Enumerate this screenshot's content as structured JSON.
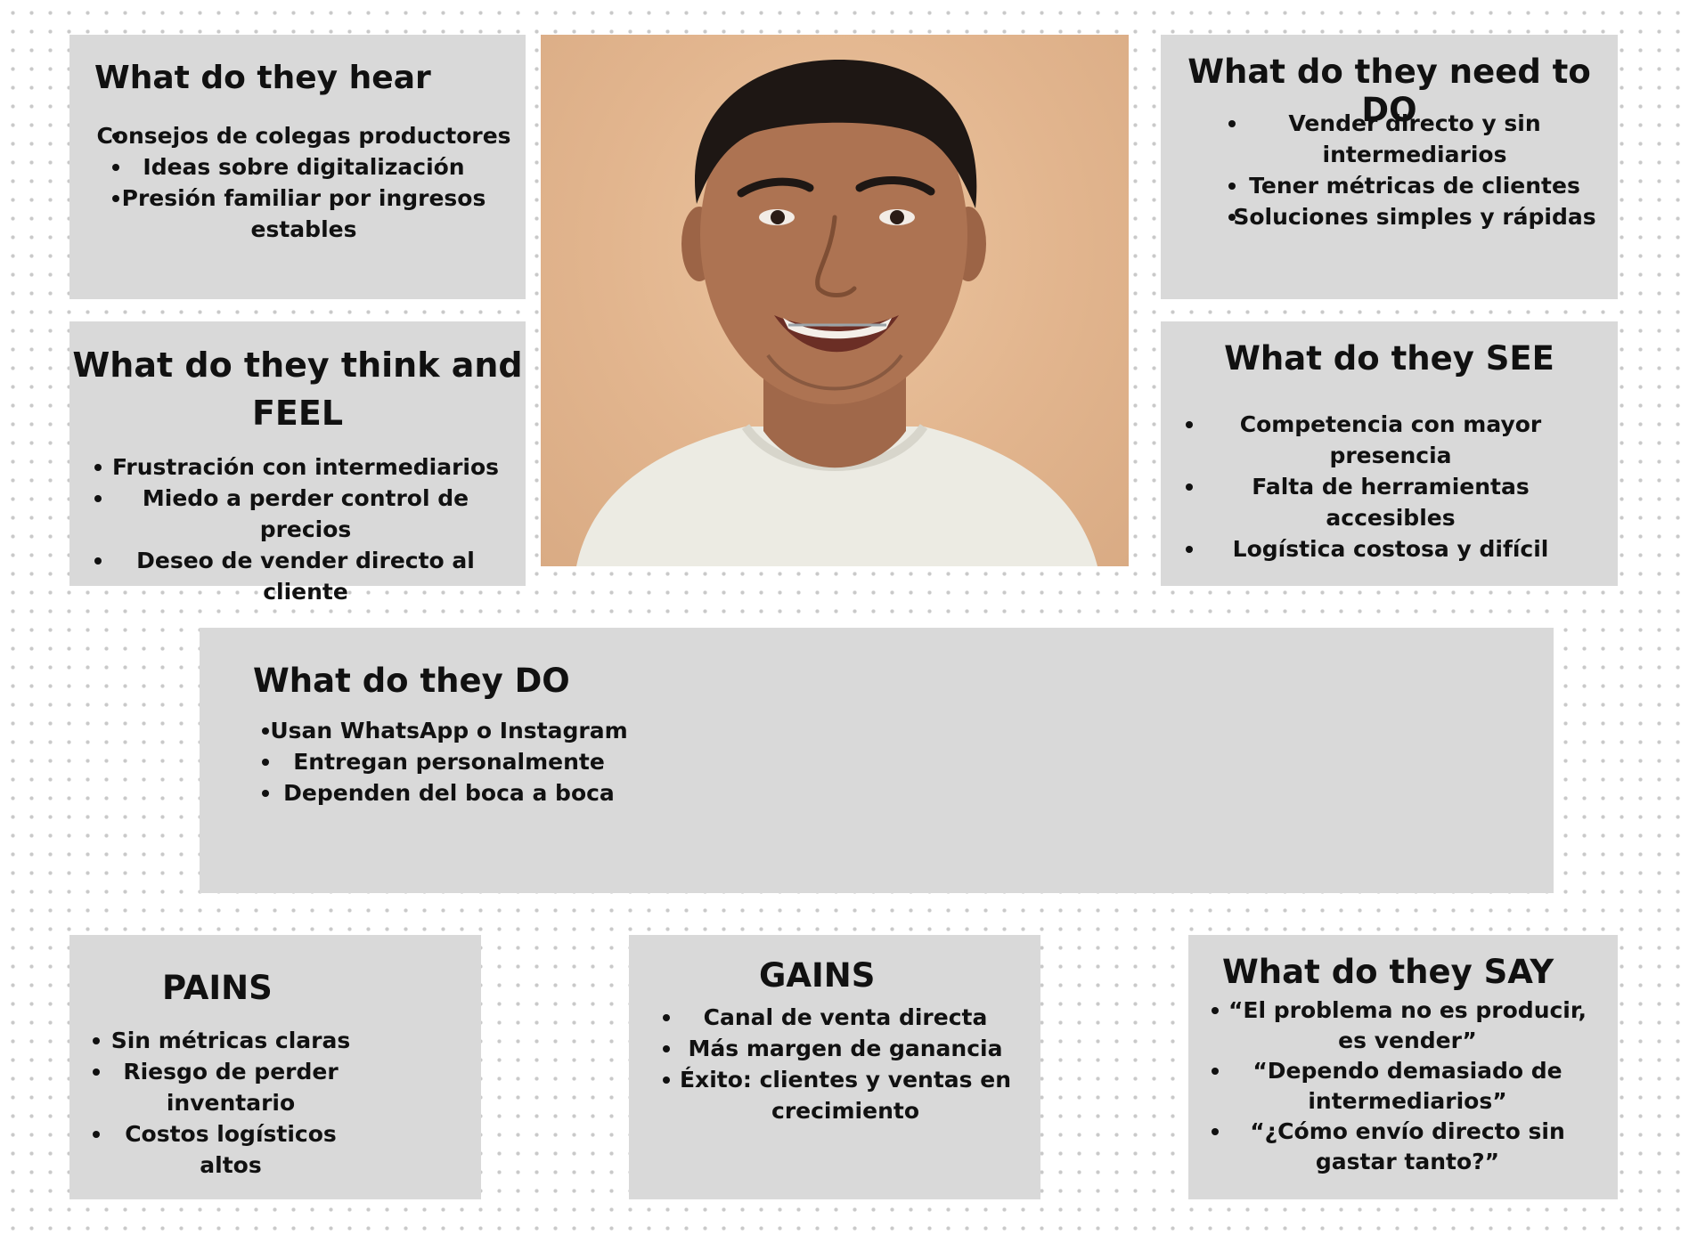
{
  "hear": {
    "title": "What do  they hear",
    "items": [
      "Consejos de colegas productores",
      "Ideas sobre digitalización",
      "Presión familiar por ingresos estables"
    ]
  },
  "think_feel": {
    "title": "What do they think and FEEL",
    "items": [
      "Frustración con intermediarios",
      "Miedo a perder control de precios",
      "Deseo de vender directo al cliente"
    ]
  },
  "need_to_do": {
    "title": "What do they need to DO",
    "items": [
      "Vender directo y sin intermediarios",
      "Tener métricas de clientes",
      "Soluciones simples y rápidas"
    ]
  },
  "see": {
    "title": "What do  they SEE",
    "items": [
      "Competencia con mayor presencia",
      "Falta de herramientas accesibles",
      "Logística costosa y difícil"
    ]
  },
  "do": {
    "title": "What do  they DO",
    "items": [
      "Usan WhatsApp o Instagram",
      "Entregan personalmente",
      "Dependen del boca a boca"
    ]
  },
  "pains": {
    "title": "PAINS",
    "items": [
      "Sin métricas claras",
      "Riesgo de perder inventario",
      "Costos logísticos altos"
    ]
  },
  "gains": {
    "title": "GAINS",
    "items": [
      "Canal de venta directa",
      "Más margen de ganancia",
      "Éxito: clientes y ventas en crecimiento"
    ]
  },
  "say": {
    "title": "What do they SAY",
    "items": [
      "“El problema no es producir, es vender”",
      "“Dependo demasiado de intermediarios”",
      "“¿Cómo envío directo sin gastar tanto?”"
    ]
  },
  "colors": {
    "card_background": "#d9d9d9",
    "photo_background": "#e2b58e",
    "text": "#111111"
  }
}
